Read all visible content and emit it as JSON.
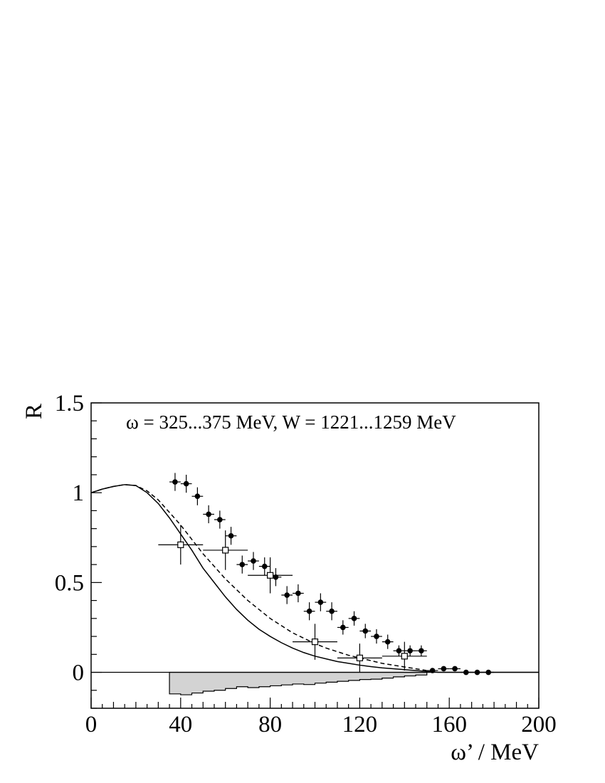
{
  "chart_data": {
    "type": "scatter",
    "title": "",
    "annotation": "ω = 325...375 MeV, W = 1221...1259 MeV",
    "xlabel": "ω’ / MeV",
    "ylabel": "R",
    "xlim": [
      0,
      200
    ],
    "ylim": [
      -0.2,
      1.5
    ],
    "x_ticks": [
      0,
      40,
      80,
      120,
      160,
      200
    ],
    "x_tick_labels": [
      "0",
      "40",
      "80",
      "120",
      "160",
      "200"
    ],
    "y_ticks": [
      0,
      0.5,
      1,
      1.5
    ],
    "y_tick_labels": [
      "0",
      "0.5",
      "1",
      "1.5"
    ],
    "grid": false,
    "series": [
      {
        "marker": "filled-circle",
        "points": [
          {
            "x": 37.5,
            "y": 1.06,
            "yerr": 0.05
          },
          {
            "x": 42.5,
            "y": 1.05,
            "yerr": 0.05
          },
          {
            "x": 47.5,
            "y": 0.98,
            "yerr": 0.05
          },
          {
            "x": 52.5,
            "y": 0.88,
            "yerr": 0.05
          },
          {
            "x": 57.5,
            "y": 0.85,
            "yerr": 0.05
          },
          {
            "x": 62.5,
            "y": 0.76,
            "yerr": 0.05
          },
          {
            "x": 67.5,
            "y": 0.6,
            "yerr": 0.05
          },
          {
            "x": 72.5,
            "y": 0.62,
            "yerr": 0.05
          },
          {
            "x": 77.5,
            "y": 0.59,
            "yerr": 0.05
          },
          {
            "x": 82.5,
            "y": 0.53,
            "yerr": 0.05
          },
          {
            "x": 87.5,
            "y": 0.43,
            "yerr": 0.05
          },
          {
            "x": 92.5,
            "y": 0.44,
            "yerr": 0.05
          },
          {
            "x": 97.5,
            "y": 0.34,
            "yerr": 0.05
          },
          {
            "x": 102.5,
            "y": 0.39,
            "yerr": 0.05
          },
          {
            "x": 107.5,
            "y": 0.34,
            "yerr": 0.05
          },
          {
            "x": 112.5,
            "y": 0.25,
            "yerr": 0.04
          },
          {
            "x": 117.5,
            "y": 0.3,
            "yerr": 0.04
          },
          {
            "x": 122.5,
            "y": 0.23,
            "yerr": 0.04
          },
          {
            "x": 127.5,
            "y": 0.2,
            "yerr": 0.04
          },
          {
            "x": 132.5,
            "y": 0.17,
            "yerr": 0.04
          },
          {
            "x": 137.5,
            "y": 0.12,
            "yerr": 0.03
          },
          {
            "x": 142.5,
            "y": 0.12,
            "yerr": 0.03
          },
          {
            "x": 147.5,
            "y": 0.12,
            "yerr": 0.03
          },
          {
            "x": 152.5,
            "y": 0.01,
            "yerr": 0.0
          },
          {
            "x": 157.5,
            "y": 0.02,
            "yerr": 0.0
          },
          {
            "x": 162.5,
            "y": 0.02,
            "yerr": 0.0
          },
          {
            "x": 167.5,
            "y": 0.0,
            "yerr": 0.0
          },
          {
            "x": 172.5,
            "y": 0.0,
            "yerr": 0.0
          },
          {
            "x": 177.5,
            "y": 0.0,
            "yerr": 0.0
          }
        ]
      },
      {
        "marker": "open-square",
        "points": [
          {
            "x": 40,
            "y": 0.71,
            "xerr": 10,
            "yerr": 0.11
          },
          {
            "x": 60,
            "y": 0.68,
            "xerr": 10,
            "yerr": 0.11
          },
          {
            "x": 80,
            "y": 0.54,
            "xerr": 10,
            "yerr": 0.1
          },
          {
            "x": 100,
            "y": 0.17,
            "xerr": 10,
            "yerr": 0.1
          },
          {
            "x": 120,
            "y": 0.08,
            "xerr": 10,
            "yerr": 0.08
          },
          {
            "x": 140,
            "y": 0.09,
            "xerr": 10,
            "yerr": 0.08
          }
        ]
      },
      {
        "style": "solid",
        "x": [
          0,
          5,
          10,
          15,
          20,
          25,
          30,
          35,
          40,
          45,
          50,
          55,
          60,
          65,
          70,
          75,
          80,
          85,
          90,
          95,
          100,
          105,
          110,
          115,
          120,
          125,
          130,
          135,
          140,
          145,
          150,
          155,
          160,
          165,
          170,
          175,
          180,
          185,
          190,
          195,
          200
        ],
        "y": [
          1.0,
          1.02,
          1.035,
          1.045,
          1.04,
          1.0,
          0.94,
          0.86,
          0.77,
          0.68,
          0.58,
          0.5,
          0.42,
          0.35,
          0.29,
          0.24,
          0.2,
          0.165,
          0.135,
          0.11,
          0.09,
          0.075,
          0.06,
          0.05,
          0.04,
          0.032,
          0.025,
          0.02,
          0.015,
          0.01,
          0.005,
          0.0,
          0.0,
          0.0,
          0.0,
          0.0,
          0.0,
          0.0,
          0.0,
          0.0,
          0.0
        ]
      },
      {
        "style": "dashed",
        "x": [
          0,
          5,
          10,
          15,
          20,
          25,
          30,
          35,
          40,
          45,
          50,
          55,
          60,
          65,
          70,
          75,
          80,
          85,
          90,
          95,
          100,
          105,
          110,
          115,
          120,
          125,
          130,
          135,
          140,
          145,
          150
        ],
        "y": [
          1.0,
          1.02,
          1.035,
          1.045,
          1.04,
          1.01,
          0.96,
          0.89,
          0.82,
          0.74,
          0.66,
          0.59,
          0.52,
          0.46,
          0.4,
          0.35,
          0.3,
          0.26,
          0.22,
          0.19,
          0.16,
          0.135,
          0.115,
          0.095,
          0.08,
          0.065,
          0.05,
          0.04,
          0.03,
          0.02,
          0.01
        ]
      },
      {
        "style": "histogram-filled",
        "color": "#d3d3d3",
        "bin_edges": [
          35,
          40,
          45,
          50,
          55,
          60,
          65,
          70,
          75,
          80,
          85,
          90,
          95,
          100,
          105,
          110,
          115,
          120,
          125,
          130,
          135,
          140,
          145,
          150
        ],
        "values": [
          -0.12,
          -0.125,
          -0.115,
          -0.105,
          -0.1,
          -0.09,
          -0.08,
          -0.085,
          -0.08,
          -0.075,
          -0.07,
          -0.065,
          -0.068,
          -0.06,
          -0.055,
          -0.05,
          -0.045,
          -0.04,
          -0.038,
          -0.032,
          -0.025,
          -0.02,
          -0.015
        ]
      }
    ]
  }
}
